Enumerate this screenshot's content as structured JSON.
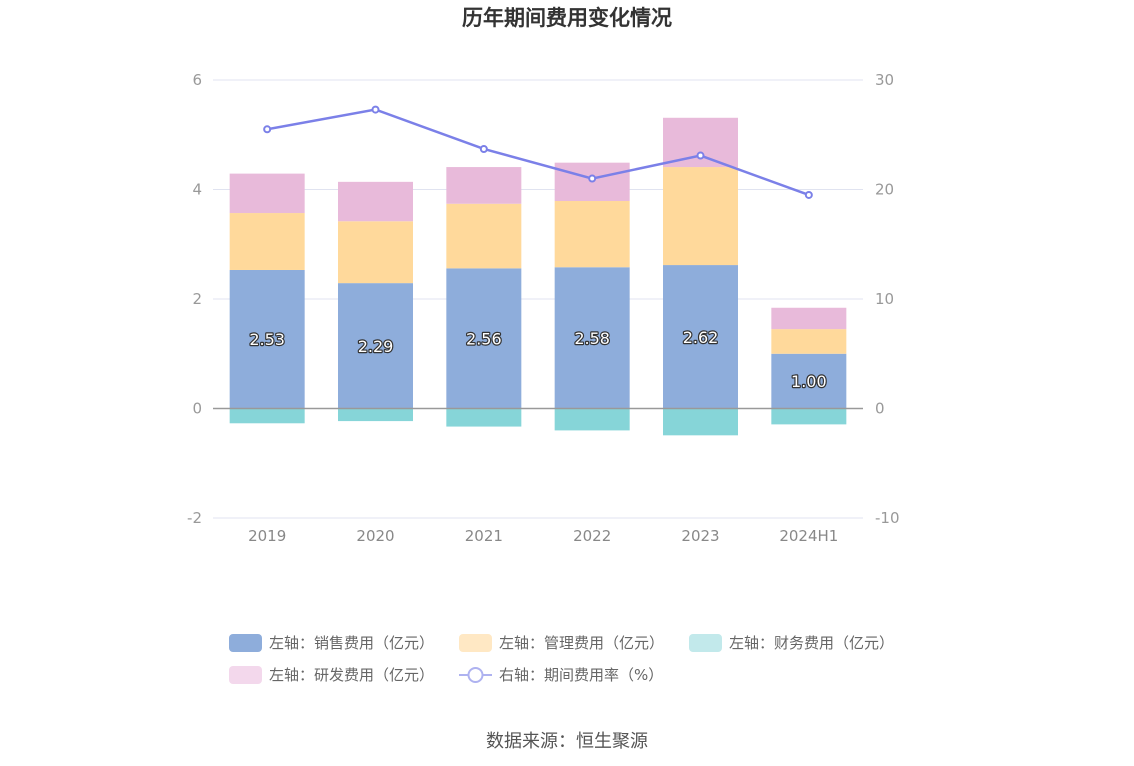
{
  "chart_data": {
    "type": "bar",
    "title": "历年期间费用变化情况",
    "categories": [
      "2019",
      "2020",
      "2021",
      "2022",
      "2023",
      "2024H1"
    ],
    "stacked": true,
    "left_axis": {
      "ylim": [
        -2,
        6
      ],
      "ticks": [
        -2,
        0,
        2,
        4,
        6
      ]
    },
    "right_axis": {
      "ylim": [
        -10,
        30
      ],
      "ticks": [
        -10,
        0,
        10,
        20,
        30
      ]
    },
    "series": [
      {
        "name": "左轴：销售费用（亿元）",
        "axis": "left",
        "type": "bar",
        "color": "#8eaddb",
        "values": [
          2.53,
          2.29,
          2.56,
          2.58,
          2.62,
          1.0
        ],
        "labels": [
          "2.53",
          "2.29",
          "2.56",
          "2.58",
          "2.62",
          "1.00"
        ]
      },
      {
        "name": "左轴：管理费用（亿元）",
        "axis": "left",
        "type": "bar",
        "color": "#ffd99b",
        "values": [
          1.04,
          1.13,
          1.18,
          1.21,
          1.79,
          0.45
        ]
      },
      {
        "name": "左轴：财务费用（亿元）",
        "axis": "left",
        "type": "bar",
        "color": "#86d5d8",
        "values": [
          -0.27,
          -0.23,
          -0.33,
          -0.4,
          -0.49,
          -0.29
        ]
      },
      {
        "name": "左轴：研发费用（亿元）",
        "axis": "left",
        "type": "bar",
        "color": "#e8bada",
        "values": [
          0.72,
          0.72,
          0.67,
          0.7,
          0.9,
          0.39
        ]
      },
      {
        "name": "右轴：期间费用率（%）",
        "axis": "right",
        "type": "line",
        "color": "#7b80e8",
        "values": [
          25.5,
          27.3,
          23.7,
          21.0,
          23.1,
          19.5
        ]
      }
    ],
    "legend_position": "bottom",
    "grid": true
  },
  "source": "数据来源：恒生聚源"
}
